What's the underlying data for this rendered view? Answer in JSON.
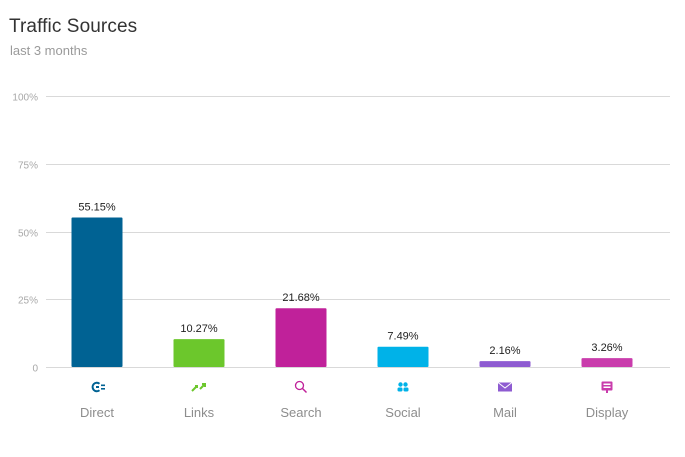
{
  "header": {
    "title": "Traffic Sources",
    "subtitle": "last 3 months"
  },
  "chart_data": {
    "type": "bar",
    "title": "Traffic Sources",
    "subtitle": "last 3 months",
    "xlabel": "",
    "ylabel": "",
    "ylim": [
      0,
      100
    ],
    "grid": true,
    "y_ticks": [
      "0",
      "25%",
      "50%",
      "75%",
      "100%"
    ],
    "y_tick_values": [
      0,
      25,
      50,
      75,
      100
    ],
    "categories": [
      "Direct",
      "Links",
      "Search",
      "Social",
      "Mail",
      "Display"
    ],
    "values": [
      55.15,
      10.27,
      21.68,
      7.49,
      2.16,
      3.26
    ],
    "value_labels": [
      "55.15%",
      "10.27%",
      "21.68%",
      "7.49%",
      "2.16%",
      "3.26%"
    ],
    "colors": [
      "#006293",
      "#6cc72c",
      "#c0219a",
      "#00b2e8",
      "#8e5bd1",
      "#c93cac"
    ],
    "icons": [
      "direct-icon",
      "links-icon",
      "search-icon",
      "social-icon",
      "mail-icon",
      "display-icon"
    ]
  }
}
